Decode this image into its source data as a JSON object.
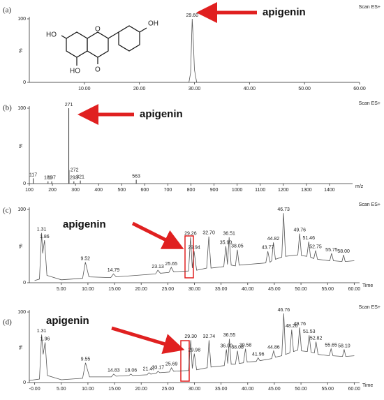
{
  "chart_data": [
    {
      "type": "chromatogram",
      "panel": "(a)",
      "title": "Scan ES+",
      "callout": "apigenin",
      "structure_labels": [
        "OH",
        "HO",
        "O",
        "HO",
        "O"
      ],
      "x": [
        0,
        29.0,
        29.3,
        29.6,
        29.8,
        30.0,
        30.4,
        60
      ],
      "values": [
        0,
        0,
        15,
        100,
        65,
        20,
        0,
        0
      ],
      "color": "#555555",
      "xlim": [
        0,
        60
      ],
      "xticks": [
        {
          "value": 10,
          "label": "10.00"
        },
        {
          "value": 20,
          "label": "20.00"
        },
        {
          "value": 30,
          "label": "30.00"
        },
        {
          "value": 40,
          "label": "40.00"
        },
        {
          "value": 50,
          "label": "50.00"
        },
        {
          "value": 60,
          "label": "60.00"
        }
      ],
      "ylim": [
        0,
        100
      ],
      "yticks": [
        0,
        100
      ],
      "y_label": "%",
      "annotations": [
        {
          "text": "29.60",
          "x": 29.6,
          "y": 100
        }
      ]
    },
    {
      "type": "spectrum",
      "panel": "(b)",
      "title": "Scan ES+",
      "callout": "apigenin",
      "x": [
        117,
        181,
        197,
        271,
        272,
        293,
        321,
        563
      ],
      "values": [
        7,
        3,
        3,
        100,
        18,
        3,
        4,
        5
      ],
      "color": "#333333",
      "xlim": [
        100,
        1500
      ],
      "xticks": [
        100,
        200,
        300,
        400,
        500,
        600,
        700,
        800,
        900,
        1000,
        1100,
        1200,
        1300,
        1400
      ],
      "ylim": [
        0,
        100
      ],
      "yticks": [
        0,
        100
      ],
      "y_label": "%",
      "x_label": "m/z"
    },
    {
      "type": "chromatogram",
      "panel": "(c)",
      "title": "Scan ES+",
      "callout": "apigenin",
      "x": [
        0,
        0.9,
        1.31,
        1.5,
        1.86,
        2.3,
        5,
        9,
        9.52,
        10.2,
        14.3,
        14.79,
        15.3,
        22.7,
        23.13,
        23.6,
        25.2,
        25.65,
        26.1,
        28.9,
        29.26,
        29.6,
        29.94,
        30.4,
        32.3,
        32.7,
        33.1,
        35.5,
        35.9,
        36.2,
        36.51,
        36.9,
        37.7,
        38.05,
        38.4,
        43.4,
        43.77,
        44.2,
        44.5,
        44.82,
        45.2,
        46.4,
        46.73,
        47.1,
        49.4,
        49.76,
        50.1,
        51.1,
        51.46,
        51.8,
        52.4,
        52.75,
        53.1,
        55.4,
        55.75,
        56.1,
        57.7,
        58.0,
        58.3,
        60
      ],
      "values": [
        3,
        5,
        68,
        40,
        58,
        10,
        4,
        6,
        28,
        8,
        7,
        12,
        8,
        12,
        17,
        13,
        14,
        21,
        15,
        16,
        62,
        20,
        43,
        17,
        20,
        63,
        20,
        22,
        50,
        25,
        62,
        24,
        23,
        45,
        24,
        27,
        43,
        28,
        30,
        55,
        32,
        35,
        95,
        36,
        38,
        67,
        37,
        36,
        56,
        35,
        33,
        44,
        32,
        30,
        40,
        30,
        29,
        38,
        29,
        30
      ],
      "color": "#555555",
      "xlim": [
        -1,
        61
      ],
      "xticks": [
        {
          "value": 5,
          "label": "5.00"
        },
        {
          "value": 10,
          "label": "10.00"
        },
        {
          "value": 15,
          "label": "15.00"
        },
        {
          "value": 20,
          "label": "20.00"
        },
        {
          "value": 25,
          "label": "25.00"
        },
        {
          "value": 30,
          "label": "30.00"
        },
        {
          "value": 35,
          "label": "35.00"
        },
        {
          "value": 40,
          "label": "40.00"
        },
        {
          "value": 45,
          "label": "45.00"
        },
        {
          "value": 50,
          "label": "50.00"
        },
        {
          "value": 55,
          "label": "55.00"
        },
        {
          "value": 60,
          "label": "60.00"
        }
      ],
      "ylim": [
        0,
        100
      ],
      "yticks": [
        0,
        100
      ],
      "y_label": "%",
      "x_label": "Time",
      "annotations": [
        {
          "text": "1.31",
          "x": 1.31,
          "y": 68
        },
        {
          "text": "1.86",
          "x": 1.86,
          "y": 58
        },
        {
          "text": "9.52",
          "x": 9.52,
          "y": 28
        },
        {
          "text": "14.79",
          "x": 14.79,
          "y": 12
        },
        {
          "text": "23.13",
          "x": 23.13,
          "y": 17
        },
        {
          "text": "25.65",
          "x": 25.65,
          "y": 21
        },
        {
          "text": "29.26",
          "x": 29.26,
          "y": 62
        },
        {
          "text": "29.94",
          "x": 29.94,
          "y": 43
        },
        {
          "text": "32.70",
          "x": 32.7,
          "y": 63
        },
        {
          "text": "35.90",
          "x": 35.9,
          "y": 50
        },
        {
          "text": "36.51",
          "x": 36.51,
          "y": 62
        },
        {
          "text": "38.05",
          "x": 38.05,
          "y": 45
        },
        {
          "text": "43.77",
          "x": 43.77,
          "y": 43
        },
        {
          "text": "44.82",
          "x": 44.82,
          "y": 55
        },
        {
          "text": "46.73",
          "x": 46.73,
          "y": 95
        },
        {
          "text": "49.76",
          "x": 49.76,
          "y": 67
        },
        {
          "text": "51.46",
          "x": 51.46,
          "y": 56
        },
        {
          "text": "52.75",
          "x": 52.75,
          "y": 44
        },
        {
          "text": "55.75",
          "x": 55.75,
          "y": 40
        },
        {
          "text": "58.00",
          "x": 58.0,
          "y": 38
        }
      ]
    },
    {
      "type": "chromatogram",
      "panel": "(d)",
      "title": "Scan ES+",
      "callout": "apigenin",
      "x": [
        -1,
        0.9,
        1.31,
        1.6,
        1.96,
        2.4,
        5,
        9,
        9.55,
        10.3,
        14.4,
        14.83,
        15.3,
        17.7,
        18.06,
        18.4,
        21.1,
        21.47,
        21.8,
        22.8,
        23.17,
        23.5,
        25.3,
        25.69,
        26.1,
        28.9,
        29.3,
        29.6,
        29.98,
        30.4,
        32.4,
        32.74,
        33.1,
        35.6,
        36.0,
        36.25,
        36.55,
        36.9,
        37.7,
        38.08,
        38.4,
        39.2,
        39.58,
        39.9,
        41.6,
        41.96,
        42.3,
        44.5,
        44.86,
        45.2,
        46.4,
        46.76,
        47.1,
        47.9,
        48.26,
        48.6,
        49.4,
        49.76,
        50.1,
        51.2,
        51.53,
        51.9,
        52.5,
        52.82,
        53.2,
        55.3,
        55.65,
        56.0,
        57.8,
        58.1,
        58.4,
        60
      ],
      "values": [
        3,
        5,
        68,
        40,
        57,
        10,
        4,
        6,
        28,
        8,
        8,
        12,
        9,
        10,
        12,
        10,
        11,
        14,
        12,
        13,
        16,
        14,
        15,
        21,
        16,
        17,
        60,
        20,
        41,
        18,
        21,
        60,
        22,
        24,
        47,
        27,
        62,
        26,
        26,
        45,
        27,
        28,
        48,
        29,
        30,
        35,
        31,
        34,
        45,
        36,
        38,
        98,
        40,
        42,
        75,
        44,
        46,
        78,
        45,
        44,
        67,
        43,
        42,
        58,
        40,
        38,
        48,
        38,
        37,
        47,
        37,
        38
      ],
      "color": "#555555",
      "xlim": [
        -1,
        61
      ],
      "xticks": [
        {
          "value": 0,
          "label": "-0.00"
        },
        {
          "value": 5,
          "label": "5.00"
        },
        {
          "value": 10,
          "label": "10.00"
        },
        {
          "value": 15,
          "label": "15.00"
        },
        {
          "value": 20,
          "label": "20.00"
        },
        {
          "value": 25,
          "label": "25.00"
        },
        {
          "value": 30,
          "label": "30.00"
        },
        {
          "value": 35,
          "label": "35.00"
        },
        {
          "value": 40,
          "label": "40.00"
        },
        {
          "value": 45,
          "label": "45.00"
        },
        {
          "value": 50,
          "label": "50.00"
        },
        {
          "value": 55,
          "label": "55.00"
        },
        {
          "value": 60,
          "label": "60.00"
        }
      ],
      "ylim": [
        0,
        100
      ],
      "yticks": [
        0,
        100
      ],
      "y_label": "%",
      "x_label": "Time",
      "annotations": [
        {
          "text": "1.31",
          "x": 1.31,
          "y": 68
        },
        {
          "text": "1.96",
          "x": 1.96,
          "y": 57
        },
        {
          "text": "9.55",
          "x": 9.55,
          "y": 28
        },
        {
          "text": "14.83",
          "x": 14.83,
          "y": 12
        },
        {
          "text": "18.06",
          "x": 18.06,
          "y": 12
        },
        {
          "text": "21.47",
          "x": 21.47,
          "y": 14
        },
        {
          "text": "23.17",
          "x": 23.17,
          "y": 16
        },
        {
          "text": "25.69",
          "x": 25.69,
          "y": 21
        },
        {
          "text": "29.30",
          "x": 29.3,
          "y": 60
        },
        {
          "text": "29.98",
          "x": 29.98,
          "y": 41
        },
        {
          "text": "32.74",
          "x": 32.74,
          "y": 60
        },
        {
          "text": "36.00",
          "x": 36.0,
          "y": 47
        },
        {
          "text": "36.55",
          "x": 36.55,
          "y": 62
        },
        {
          "text": "38.08",
          "x": 38.08,
          "y": 45
        },
        {
          "text": "39.58",
          "x": 39.58,
          "y": 48
        },
        {
          "text": "41.96",
          "x": 41.96,
          "y": 35
        },
        {
          "text": "44.86",
          "x": 44.86,
          "y": 45
        },
        {
          "text": "46.76",
          "x": 46.76,
          "y": 98
        },
        {
          "text": "48.26",
          "x": 48.26,
          "y": 75
        },
        {
          "text": "49.76",
          "x": 49.76,
          "y": 78
        },
        {
          "text": "51.53",
          "x": 51.53,
          "y": 67
        },
        {
          "text": "52.82",
          "x": 52.82,
          "y": 58
        },
        {
          "text": "55.65",
          "x": 55.65,
          "y": 48
        },
        {
          "text": "58.10",
          "x": 58.1,
          "y": 47
        }
      ]
    }
  ]
}
